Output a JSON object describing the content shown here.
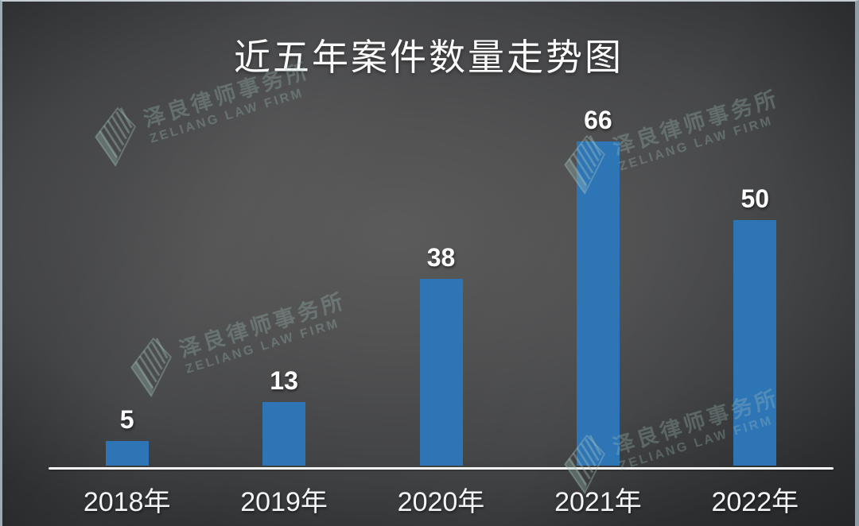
{
  "title": "近五年案件数量走势图",
  "watermark": {
    "name_cn": "泽良律师事务所",
    "name_en": "ZELIANG LAW FIRM"
  },
  "colors": {
    "bar": "#2E75B6",
    "background_center": "#595959",
    "background_edge": "#27292B",
    "axis_line": "#FAFAFA",
    "label_text": "#FAFAFA",
    "watermark": "rgba(163,195,188,0.30)"
  },
  "chart_data": {
    "type": "bar",
    "title": "近五年案件数量走势图",
    "categories": [
      "2018年",
      "2019年",
      "2020年",
      "2021年",
      "2022年"
    ],
    "values": [
      5,
      13,
      38,
      66,
      50
    ],
    "xlabel": "",
    "ylabel": "",
    "ylim": [
      0,
      70
    ],
    "grid": false,
    "legend": false,
    "data_labels": true,
    "bar_color": "#2E75B6"
  }
}
